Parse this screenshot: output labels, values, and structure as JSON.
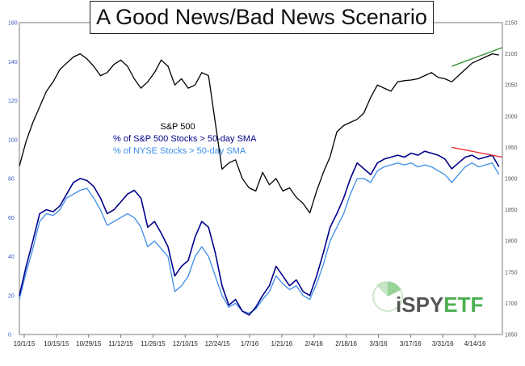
{
  "title": "A Good News/Bad News Scenario",
  "legend": [
    {
      "label": "S&P 500",
      "color": "#000000"
    },
    {
      "label": "% of S&P 500 Stocks > 50-day SMA",
      "color": "#00008b"
    },
    {
      "label": "% of NYSE Stocks > 50-day SMA",
      "color": "#3d8ee8"
    }
  ],
  "logo": {
    "text_i": "i",
    "text_spy": "SPY",
    "text_etf": "ETF",
    "color_green": "#4caf50",
    "color_gray": "#555555"
  },
  "colors": {
    "sp500": "#000000",
    "sp_pct": "#00008b",
    "nyse_pct": "#3d8ee8",
    "trend_up": "#2e8b2e",
    "trend_down": "#e8202a",
    "axis_left": "#3a57c4"
  },
  "chart_data": {
    "type": "line",
    "title": "A Good News/Bad News Scenario",
    "x_ticks": [
      "10/1/15",
      "10/15/15",
      "10/29/15",
      "11/12/15",
      "11/26/15",
      "12/10/15",
      "12/24/15",
      "1/7/16",
      "1/21/16",
      "2/4/16",
      "2/18/16",
      "3/3/16",
      "3/17/16",
      "3/31/16",
      "4/14/16"
    ],
    "x_range": [
      0,
      143
    ],
    "y_left": {
      "ylim": [
        0,
        160
      ],
      "ticks": [
        0,
        20,
        40,
        60,
        80,
        100,
        120,
        140,
        160
      ]
    },
    "y_right": {
      "ylim": [
        1650,
        2150
      ],
      "ticks": [
        1650,
        1700,
        1750,
        1800,
        1850,
        1900,
        1950,
        2000,
        2050,
        2100,
        2150
      ]
    },
    "series": [
      {
        "name": "S&P 500",
        "axis": "right",
        "x": [
          0,
          2,
          4,
          6,
          8,
          10,
          12,
          14,
          16,
          18,
          20,
          22,
          24,
          26,
          28,
          30,
          32,
          34,
          36,
          38,
          40,
          42,
          44,
          46,
          48,
          50,
          52,
          54,
          56,
          58,
          60,
          62,
          64,
          66,
          68,
          70,
          72,
          74,
          76,
          78,
          80,
          82,
          84,
          86,
          88,
          90,
          92,
          94,
          96,
          98,
          100,
          102,
          104,
          106,
          108,
          110,
          112,
          114,
          116,
          118,
          120,
          122,
          124,
          126,
          128,
          130,
          132,
          134,
          136,
          138,
          140,
          142
        ],
        "values": [
          1920,
          1960,
          1990,
          2015,
          2040,
          2055,
          2075,
          2085,
          2095,
          2100,
          2092,
          2080,
          2065,
          2070,
          2083,
          2090,
          2080,
          2060,
          2045,
          2055,
          2070,
          2090,
          2080,
          2050,
          2060,
          2045,
          2050,
          2070,
          2065,
          1990,
          1915,
          1925,
          1930,
          1900,
          1885,
          1880,
          1910,
          1890,
          1900,
          1880,
          1885,
          1870,
          1860,
          1845,
          1880,
          1910,
          1935,
          1975,
          1985,
          1990,
          1995,
          2005,
          2030,
          2050,
          2045,
          2040,
          2055,
          2057,
          2058,
          2060,
          2065,
          2070,
          2062,
          2060,
          2055,
          2065,
          2075,
          2085,
          2090,
          2095,
          2100,
          2098
        ]
      },
      {
        "name": "% of S&P 500 Stocks > 50-day SMA",
        "axis": "left",
        "x": [
          0,
          2,
          4,
          6,
          8,
          10,
          12,
          14,
          16,
          18,
          20,
          22,
          24,
          26,
          28,
          30,
          32,
          34,
          36,
          38,
          40,
          42,
          44,
          46,
          48,
          50,
          52,
          54,
          56,
          58,
          60,
          62,
          64,
          66,
          68,
          70,
          72,
          74,
          76,
          78,
          80,
          82,
          84,
          86,
          88,
          90,
          92,
          94,
          96,
          98,
          100,
          102,
          104,
          106,
          108,
          110,
          112,
          114,
          116,
          118,
          120,
          122,
          124,
          126,
          128,
          130,
          132,
          134,
          136,
          138,
          140,
          142
        ],
        "values": [
          20,
          35,
          48,
          62,
          64,
          63,
          66,
          72,
          78,
          80,
          79,
          76,
          70,
          62,
          64,
          68,
          72,
          74,
          70,
          55,
          58,
          52,
          45,
          30,
          35,
          38,
          50,
          58,
          55,
          42,
          25,
          15,
          18,
          12,
          10,
          14,
          20,
          25,
          35,
          30,
          25,
          28,
          22,
          20,
          30,
          42,
          55,
          62,
          70,
          80,
          88,
          85,
          82,
          88,
          90,
          91,
          92,
          91,
          93,
          92,
          94,
          93,
          92,
          90,
          85,
          88,
          91,
          92,
          90,
          91,
          92,
          86
        ]
      },
      {
        "name": "% of NYSE Stocks > 50-day SMA",
        "axis": "left",
        "x": [
          0,
          2,
          4,
          6,
          8,
          10,
          12,
          14,
          16,
          18,
          20,
          22,
          24,
          26,
          28,
          30,
          32,
          34,
          36,
          38,
          40,
          42,
          44,
          46,
          48,
          50,
          52,
          54,
          56,
          58,
          60,
          62,
          64,
          66,
          68,
          70,
          72,
          74,
          76,
          78,
          80,
          82,
          84,
          86,
          88,
          90,
          92,
          94,
          96,
          98,
          100,
          102,
          104,
          106,
          108,
          110,
          112,
          114,
          116,
          118,
          120,
          122,
          124,
          126,
          128,
          130,
          132,
          134,
          136,
          138,
          140,
          142
        ],
        "values": [
          18,
          32,
          44,
          58,
          62,
          61,
          64,
          70,
          72,
          74,
          75,
          70,
          64,
          56,
          58,
          60,
          62,
          60,
          55,
          45,
          48,
          44,
          40,
          22,
          25,
          30,
          40,
          45,
          40,
          30,
          20,
          14,
          16,
          12,
          11,
          13,
          18,
          22,
          30,
          26,
          23,
          25,
          20,
          18,
          26,
          36,
          48,
          55,
          62,
          72,
          80,
          80,
          78,
          84,
          86,
          87,
          88,
          87,
          88,
          86,
          87,
          86,
          84,
          82,
          78,
          82,
          86,
          88,
          86,
          87,
          88,
          82
        ]
      }
    ],
    "annotations": [
      {
        "type": "trendline",
        "axis": "right",
        "x": [
          128,
          143
        ],
        "values": [
          2080,
          2110
        ],
        "color": "#2e8b2e"
      },
      {
        "type": "trendline",
        "axis": "left",
        "x": [
          128,
          143
        ],
        "values": [
          96,
          91
        ],
        "color": "#e8202a"
      }
    ],
    "grid": false,
    "legend_position": "upper-left"
  }
}
